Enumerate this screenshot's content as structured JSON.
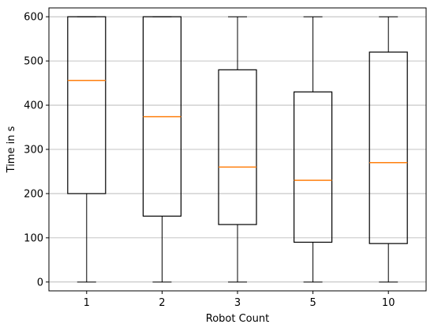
{
  "chart_data": {
    "type": "box",
    "categories": [
      "1",
      "2",
      "3",
      "5",
      "10"
    ],
    "boxes": [
      {
        "category": "1",
        "whisker_low": 0,
        "q1": 200,
        "median": 456,
        "q3": 600,
        "whisker_high": 600
      },
      {
        "category": "2",
        "whisker_low": 0,
        "q1": 149,
        "median": 374,
        "q3": 600,
        "whisker_high": 600
      },
      {
        "category": "3",
        "whisker_low": 0,
        "q1": 130,
        "median": 260,
        "q3": 480,
        "whisker_high": 600
      },
      {
        "category": "5",
        "whisker_low": 0,
        "q1": 90,
        "median": 230,
        "q3": 430,
        "whisker_high": 600
      },
      {
        "category": "10",
        "whisker_low": 0,
        "q1": 87,
        "median": 270,
        "q3": 520,
        "whisker_high": 600
      }
    ],
    "title": "",
    "xlabel": "Robot Count",
    "ylabel": "Time in s",
    "ylim": [
      -20,
      620
    ],
    "yticks": [
      0,
      100,
      200,
      300,
      400,
      500,
      600
    ],
    "grid": "y-major",
    "colors": {
      "box": "#000000",
      "median": "#ff7f0e",
      "grid": "#b0b0b0"
    }
  }
}
